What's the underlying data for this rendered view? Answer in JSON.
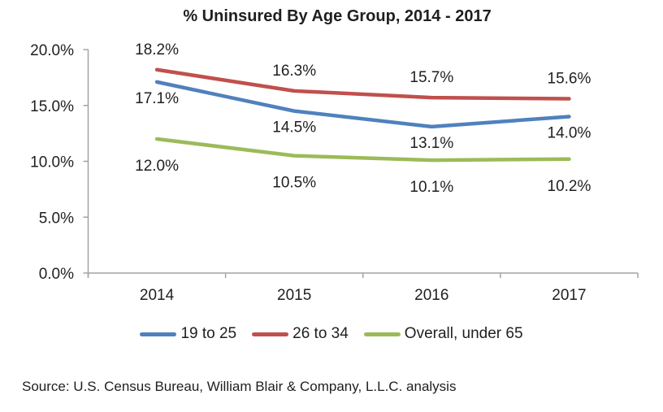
{
  "title": "% Uninsured By Age Group, 2014 - 2017",
  "source_note": "Source: U.S. Census Bureau, William Blair & Company, L.L.C. analysis",
  "colors": {
    "text": "#1f1f1f",
    "axis": "#a3a3a3",
    "series_blue": "#4F81BD",
    "series_red": "#C0504D",
    "series_green": "#9BBB59"
  },
  "chart_data": {
    "type": "line",
    "title": "% Uninsured By Age Group, 2014 - 2017",
    "categories": [
      "2014",
      "2015",
      "2016",
      "2017"
    ],
    "series": [
      {
        "name": "19 to 25",
        "color": "#4F81BD",
        "values": [
          17.1,
          14.5,
          13.1,
          14.0
        ],
        "point_labels": [
          "17.1%",
          "14.5%",
          "13.1%",
          "14.0%"
        ],
        "label_placement": "below"
      },
      {
        "name": "26 to 34",
        "color": "#C0504D",
        "values": [
          18.2,
          16.3,
          15.7,
          15.6
        ],
        "point_labels": [
          "18.2%",
          "16.3%",
          "15.7%",
          "15.6%"
        ],
        "label_placement": "above"
      },
      {
        "name": "Overall, under 65",
        "color": "#9BBB59",
        "values": [
          12.0,
          10.5,
          10.1,
          10.2
        ],
        "point_labels": [
          "12.0%",
          "10.5%",
          "10.1%",
          "10.2%"
        ],
        "label_placement": "below"
      }
    ],
    "y_axis": {
      "min": 0,
      "max": 20,
      "tick_step": 5,
      "tick_labels": [
        "20.0%",
        "15.0%",
        "10.0%",
        "5.0%",
        "0.0%"
      ]
    },
    "xlabel": "",
    "ylabel": "",
    "grid": false,
    "legend_position": "bottom-center"
  }
}
